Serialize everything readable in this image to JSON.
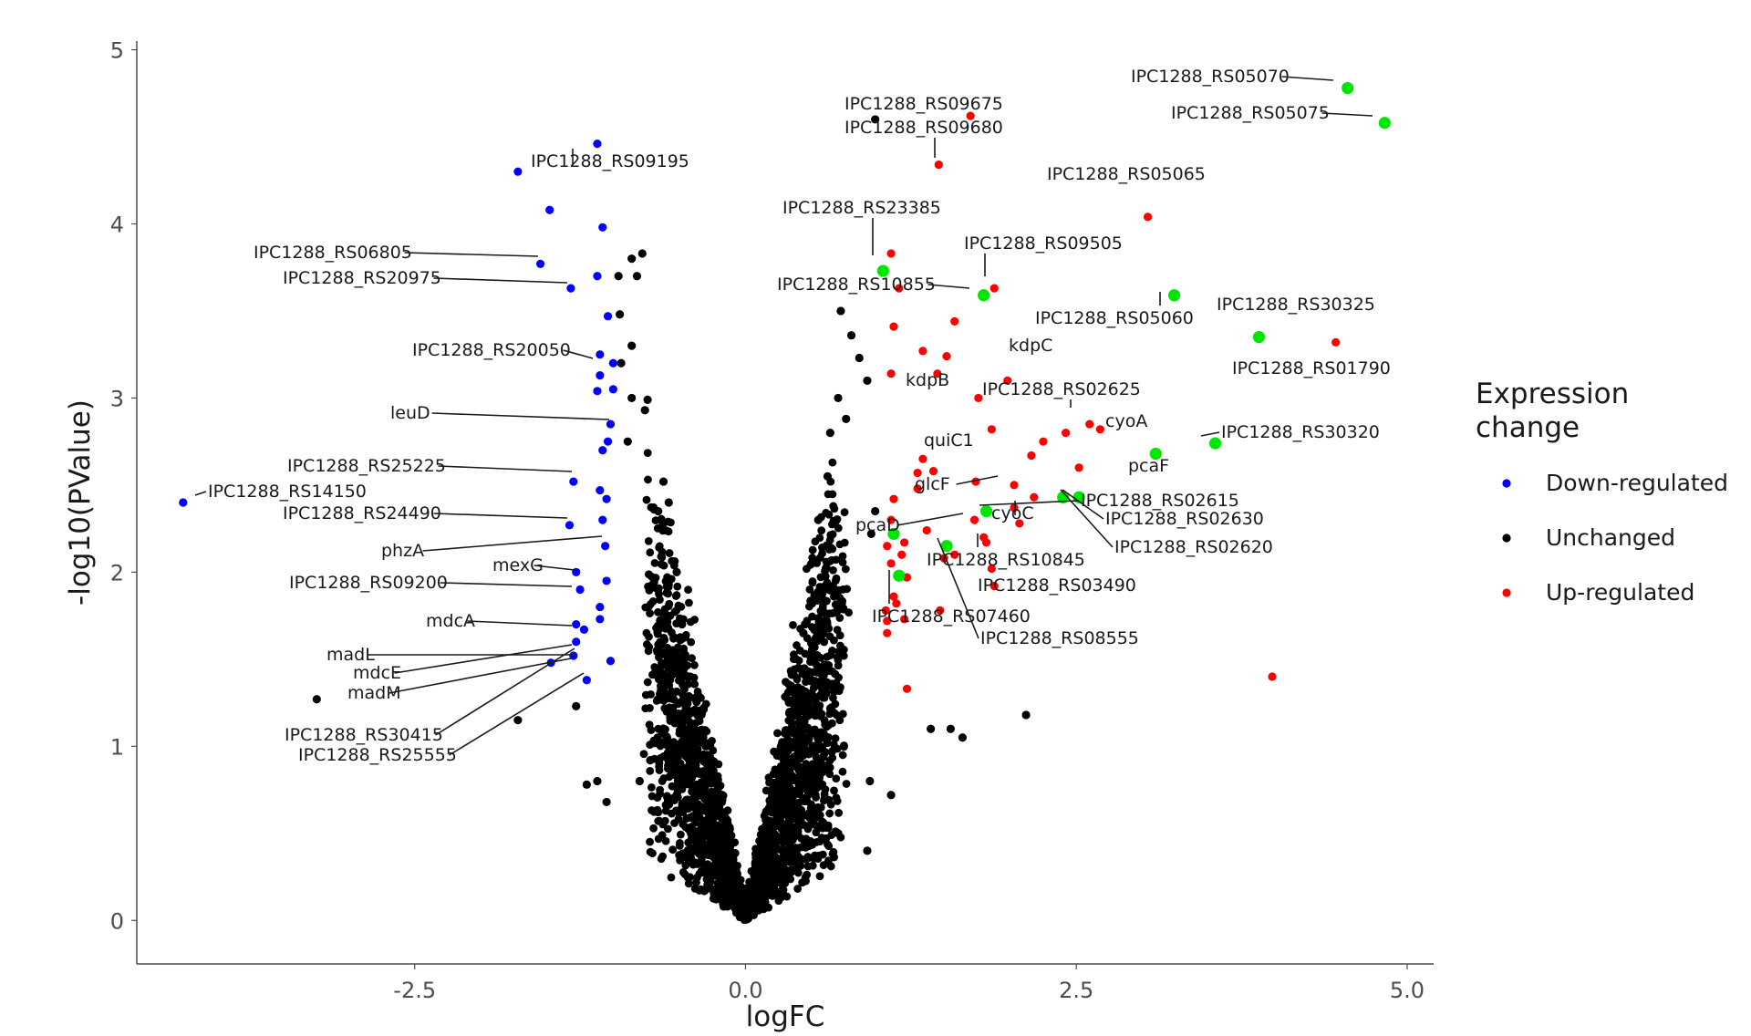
{
  "chart_data": {
    "type": "scatter",
    "xlabel": "logFC",
    "ylabel": "-log10(PValue)",
    "xlim": [
      -4.6,
      5.2
    ],
    "ylim": [
      -0.25,
      5.05
    ],
    "x_ticks": [
      {
        "value": -2.5,
        "label": "-2.5"
      },
      {
        "value": 0.0,
        "label": "0.0"
      },
      {
        "value": 2.5,
        "label": "2.5"
      },
      {
        "value": 5.0,
        "label": "5.0"
      }
    ],
    "y_ticks": [
      {
        "value": 0,
        "label": "0"
      },
      {
        "value": 1,
        "label": "1"
      },
      {
        "value": 2,
        "label": "2"
      },
      {
        "value": 3,
        "label": "3"
      },
      {
        "value": 4,
        "label": "4"
      },
      {
        "value": 5,
        "label": "5"
      }
    ],
    "grid": false,
    "legend": {
      "title_lines": [
        "Expression",
        "change"
      ],
      "placement": "right",
      "entries": [
        {
          "label": "Down-regulated",
          "color": "#0000ff"
        },
        {
          "label": "Unchanged",
          "color": "#000000"
        },
        {
          "label": "Up-regulated",
          "color": "#ff0000"
        }
      ]
    },
    "highlight_color": "#00e600",
    "series": [
      {
        "name": "Down-regulated",
        "color": "#0000ff",
        "points": [
          [
            -4.25,
            2.4
          ],
          [
            -1.72,
            4.3
          ],
          [
            -1.12,
            4.46
          ],
          [
            -1.48,
            4.08
          ],
          [
            -1.08,
            3.98
          ],
          [
            -1.55,
            3.77
          ],
          [
            -1.32,
            3.63
          ],
          [
            -1.12,
            3.7
          ],
          [
            -1.04,
            3.47
          ],
          [
            -1.1,
            3.25
          ],
          [
            -1.0,
            3.2
          ],
          [
            -1.1,
            3.13
          ],
          [
            -1.12,
            3.04
          ],
          [
            -1.0,
            3.05
          ],
          [
            -1.02,
            2.85
          ],
          [
            -1.04,
            2.75
          ],
          [
            -1.08,
            2.7
          ],
          [
            -1.3,
            2.52
          ],
          [
            -1.1,
            2.47
          ],
          [
            -1.05,
            2.42
          ],
          [
            -1.33,
            2.27
          ],
          [
            -1.08,
            2.3
          ],
          [
            -1.06,
            2.15
          ],
          [
            -1.28,
            2.0
          ],
          [
            -1.05,
            1.95
          ],
          [
            -1.25,
            1.9
          ],
          [
            -1.1,
            1.8
          ],
          [
            -1.28,
            1.7
          ],
          [
            -1.22,
            1.67
          ],
          [
            -1.1,
            1.73
          ],
          [
            -1.28,
            1.6
          ],
          [
            -1.47,
            1.48
          ],
          [
            -1.3,
            1.52
          ],
          [
            -1.02,
            1.49
          ],
          [
            -1.2,
            1.38
          ]
        ]
      },
      {
        "name": "Up-regulated",
        "color": "#ff0000",
        "points": [
          [
            1.7,
            4.62
          ],
          [
            1.46,
            4.34
          ],
          [
            3.04,
            4.04
          ],
          [
            1.1,
            3.83
          ],
          [
            1.88,
            3.63
          ],
          [
            1.16,
            3.63
          ],
          [
            1.58,
            3.44
          ],
          [
            1.12,
            3.41
          ],
          [
            1.34,
            3.27
          ],
          [
            1.52,
            3.24
          ],
          [
            1.1,
            3.14
          ],
          [
            1.45,
            3.14
          ],
          [
            1.98,
            3.1
          ],
          [
            1.76,
            3.0
          ],
          [
            4.46,
            3.32
          ],
          [
            2.6,
            2.85
          ],
          [
            2.68,
            2.82
          ],
          [
            2.42,
            2.8
          ],
          [
            1.86,
            2.82
          ],
          [
            2.25,
            2.75
          ],
          [
            2.16,
            2.67
          ],
          [
            1.34,
            2.65
          ],
          [
            1.42,
            2.58
          ],
          [
            1.3,
            2.57
          ],
          [
            2.52,
            2.6
          ],
          [
            1.74,
            2.52
          ],
          [
            2.03,
            2.5
          ],
          [
            1.3,
            2.48
          ],
          [
            1.12,
            2.42
          ],
          [
            2.18,
            2.43
          ],
          [
            2.03,
            2.37
          ],
          [
            1.73,
            2.3
          ],
          [
            2.07,
            2.28
          ],
          [
            1.1,
            2.3
          ],
          [
            1.37,
            2.24
          ],
          [
            1.8,
            2.2
          ],
          [
            1.82,
            2.17
          ],
          [
            1.2,
            2.17
          ],
          [
            1.07,
            2.15
          ],
          [
            1.18,
            2.1
          ],
          [
            1.58,
            2.1
          ],
          [
            1.5,
            2.08
          ],
          [
            1.1,
            2.05
          ],
          [
            1.86,
            2.02
          ],
          [
            1.22,
            1.97
          ],
          [
            1.88,
            1.92
          ],
          [
            1.12,
            1.86
          ],
          [
            1.14,
            1.82
          ],
          [
            1.06,
            1.78
          ],
          [
            1.47,
            1.78
          ],
          [
            1.2,
            1.73
          ],
          [
            1.07,
            1.72
          ],
          [
            1.07,
            1.65
          ],
          [
            1.22,
            1.33
          ],
          [
            3.98,
            1.4
          ]
        ]
      },
      {
        "name": "Highlighted",
        "color": "#00e600",
        "points": [
          [
            4.55,
            4.78
          ],
          [
            4.83,
            4.58
          ],
          [
            1.04,
            3.73
          ],
          [
            1.8,
            3.59
          ],
          [
            3.24,
            3.59
          ],
          [
            3.88,
            3.35
          ],
          [
            3.55,
            2.74
          ],
          [
            3.1,
            2.68
          ],
          [
            2.52,
            2.43
          ],
          [
            2.4,
            2.43
          ],
          [
            1.82,
            2.35
          ],
          [
            1.12,
            2.22
          ],
          [
            1.52,
            2.15
          ],
          [
            1.16,
            1.98
          ]
        ]
      },
      {
        "name": "Unchanged",
        "color": "#000000",
        "points": [
          [
            0.98,
            4.6
          ],
          [
            -0.78,
            3.83
          ],
          [
            -0.86,
            3.8
          ],
          [
            -0.96,
            3.7
          ],
          [
            -0.82,
            3.7
          ],
          [
            -0.95,
            3.48
          ],
          [
            -0.86,
            3.3
          ],
          [
            -0.94,
            3.2
          ],
          [
            -0.86,
            3.0
          ],
          [
            -0.74,
            2.99
          ],
          [
            -0.76,
            2.93
          ],
          [
            -0.89,
            2.75
          ],
          [
            -3.24,
            1.27
          ],
          [
            -1.72,
            1.15
          ],
          [
            -1.28,
            1.23
          ],
          [
            0.72,
            3.5
          ],
          [
            0.8,
            3.36
          ],
          [
            0.86,
            3.23
          ],
          [
            0.92,
            3.1
          ],
          [
            0.7,
            3.0
          ],
          [
            0.76,
            2.88
          ],
          [
            0.98,
            2.35
          ],
          [
            0.95,
            2.22
          ],
          [
            2.12,
            1.18
          ],
          [
            1.64,
            1.05
          ],
          [
            1.4,
            1.1
          ],
          [
            1.55,
            1.1
          ],
          [
            0.94,
            0.8
          ],
          [
            0.7,
            0.5
          ],
          [
            0.92,
            0.4
          ],
          [
            -0.6,
            1.48
          ],
          [
            -0.72,
            0.92
          ],
          [
            -0.48,
            1.12
          ],
          [
            -0.8,
            0.8
          ],
          [
            -1.12,
            0.8
          ],
          [
            -1.2,
            0.78
          ],
          [
            -0.66,
            2.35
          ],
          [
            -0.58,
            2.4
          ],
          [
            -0.62,
            2.52
          ],
          [
            -0.52,
            2.0
          ],
          [
            -0.48,
            1.7
          ],
          [
            -0.42,
            1.4
          ],
          [
            -0.37,
            1.2
          ],
          [
            -0.3,
            1.0
          ],
          [
            -0.26,
            0.8
          ],
          [
            -0.2,
            0.6
          ],
          [
            -0.15,
            0.4
          ],
          [
            -0.1,
            0.25
          ],
          [
            -0.05,
            0.1
          ],
          [
            0.0,
            0.02
          ],
          [
            0.05,
            0.1
          ],
          [
            0.1,
            0.28
          ],
          [
            0.15,
            0.45
          ],
          [
            0.2,
            0.62
          ],
          [
            0.25,
            0.8
          ],
          [
            0.3,
            1.0
          ],
          [
            0.35,
            1.2
          ],
          [
            0.4,
            1.45
          ],
          [
            0.45,
            1.7
          ],
          [
            0.5,
            2.05
          ],
          [
            0.55,
            2.3
          ],
          [
            0.62,
            2.55
          ],
          [
            0.64,
            2.8
          ],
          [
            -0.55,
            0.7
          ],
          [
            0.55,
            0.8
          ],
          [
            -1.05,
            0.68
          ],
          [
            1.1,
            0.72
          ],
          [
            0.6,
            1.3
          ],
          [
            -0.66,
            1.9
          ],
          [
            0.66,
            1.92
          ]
        ]
      }
    ],
    "annotations": [
      {
        "label": "IPC1288_RS05070"
      },
      {
        "label": "IPC1288_RS05075"
      },
      {
        "label": "IPC1288_RS09675"
      },
      {
        "label": "IPC1288_RS09680"
      },
      {
        "label": "IPC1288_RS09195"
      },
      {
        "label": "IPC1288_RS05065"
      },
      {
        "label": "IPC1288_RS23385"
      },
      {
        "label": "IPC1288_RS06805"
      },
      {
        "label": "IPC1288_RS09505"
      },
      {
        "label": "IPC1288_RS20975"
      },
      {
        "label": "IPC1288_RS10855"
      },
      {
        "label": "IPC1288_RS30325"
      },
      {
        "label": "IPC1288_RS05060"
      },
      {
        "label": "IPC1288_RS20050"
      },
      {
        "label": "kdpC"
      },
      {
        "label": "IPC1288_RS01790"
      },
      {
        "label": "kdpB"
      },
      {
        "label": "IPC1288_RS02625"
      },
      {
        "label": "leuD"
      },
      {
        "label": "cyoA"
      },
      {
        "label": "IPC1288_RS30320"
      },
      {
        "label": "quiC1"
      },
      {
        "label": "pcaF"
      },
      {
        "label": "IPC1288_RS25225"
      },
      {
        "label": "glcF"
      },
      {
        "label": "IPC1288_RS14150"
      },
      {
        "label": "IPC1288_RS02615"
      },
      {
        "label": "IPC1288_RS24490"
      },
      {
        "label": "cyoC"
      },
      {
        "label": "IPC1288_RS02630"
      },
      {
        "label": "pcaD"
      },
      {
        "label": "phzA"
      },
      {
        "label": "IPC1288_RS02620"
      },
      {
        "label": "IPC1288_RS10845"
      },
      {
        "label": "mexG"
      },
      {
        "label": "IPC1288_RS09200"
      },
      {
        "label": "IPC1288_RS03490"
      },
      {
        "label": "mdcA"
      },
      {
        "label": "IPC1288_RS07460"
      },
      {
        "label": "IPC1288_RS08555"
      },
      {
        "label": "madL"
      },
      {
        "label": "mdcE"
      },
      {
        "label": "madM"
      },
      {
        "label": "IPC1288_RS30415"
      },
      {
        "label": "IPC1288_RS25555"
      }
    ]
  }
}
